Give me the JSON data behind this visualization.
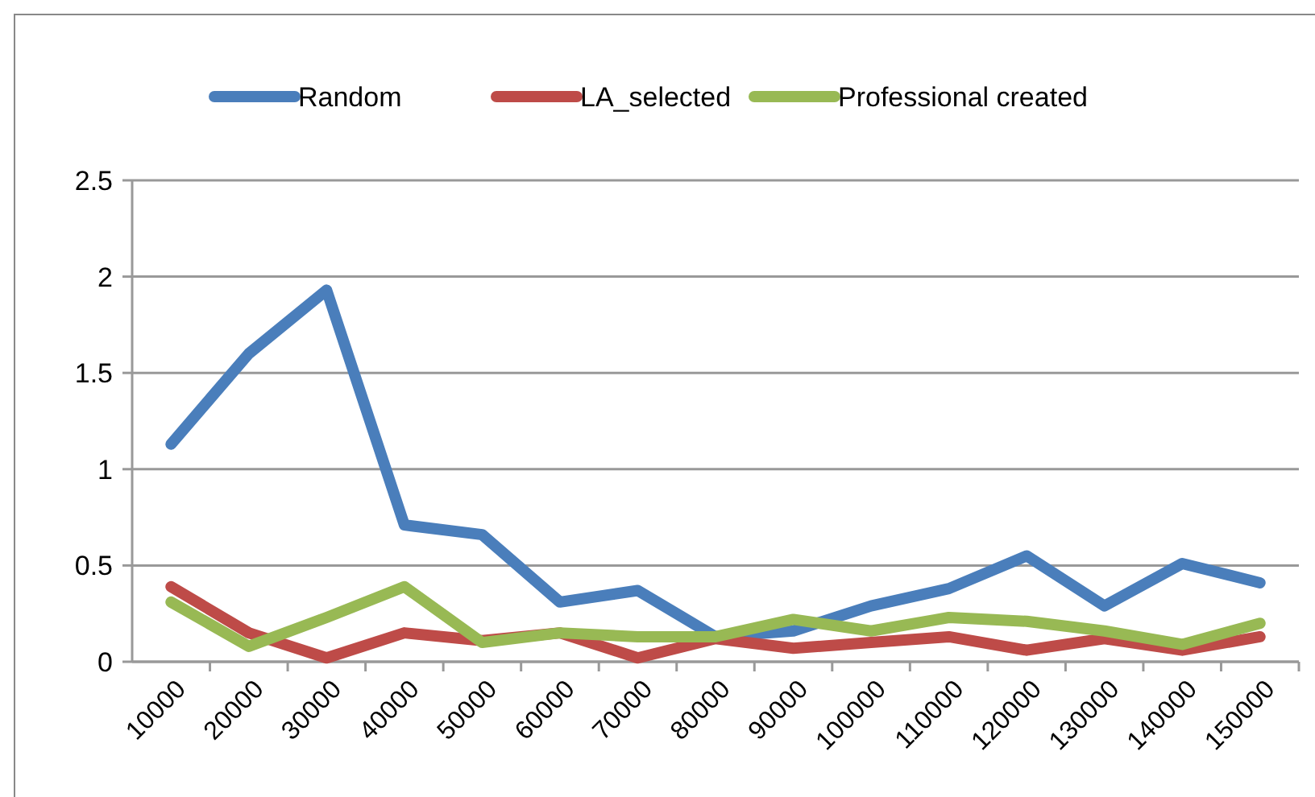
{
  "chart_data": {
    "type": "line",
    "categories": [
      "10000",
      "20000",
      "30000",
      "40000",
      "50000",
      "60000",
      "70000",
      "80000",
      "90000",
      "100000",
      "110000",
      "120000",
      "130000",
      "140000",
      "150000"
    ],
    "series": [
      {
        "name": "Random",
        "color": "#4a7ebb",
        "values": [
          1.13,
          1.6,
          1.93,
          0.71,
          0.66,
          0.31,
          0.37,
          0.13,
          0.16,
          0.29,
          0.38,
          0.55,
          0.29,
          0.51,
          0.41
        ]
      },
      {
        "name": "LA_selected",
        "color": "#be4b48",
        "values": [
          0.39,
          0.15,
          0.02,
          0.15,
          0.11,
          0.15,
          0.02,
          0.12,
          0.07,
          0.1,
          0.13,
          0.06,
          0.12,
          0.06,
          0.13
        ]
      },
      {
        "name": "Professional created",
        "color": "#98b954",
        "values": [
          0.31,
          0.08,
          0.23,
          0.39,
          0.1,
          0.15,
          0.13,
          0.13,
          0.22,
          0.16,
          0.23,
          0.21,
          0.16,
          0.09,
          0.2
        ]
      }
    ],
    "ylim": [
      0,
      2.5
    ],
    "yticks": [
      0,
      {
        "value": 0.5,
        "label": "0.5"
      },
      1,
      {
        "value": 1.5,
        "label": "1.5"
      },
      2,
      {
        "value": 2.5,
        "label": "2.5"
      }
    ],
    "grid": "y",
    "legend": "top",
    "marker": "none",
    "line_style": "solid"
  }
}
